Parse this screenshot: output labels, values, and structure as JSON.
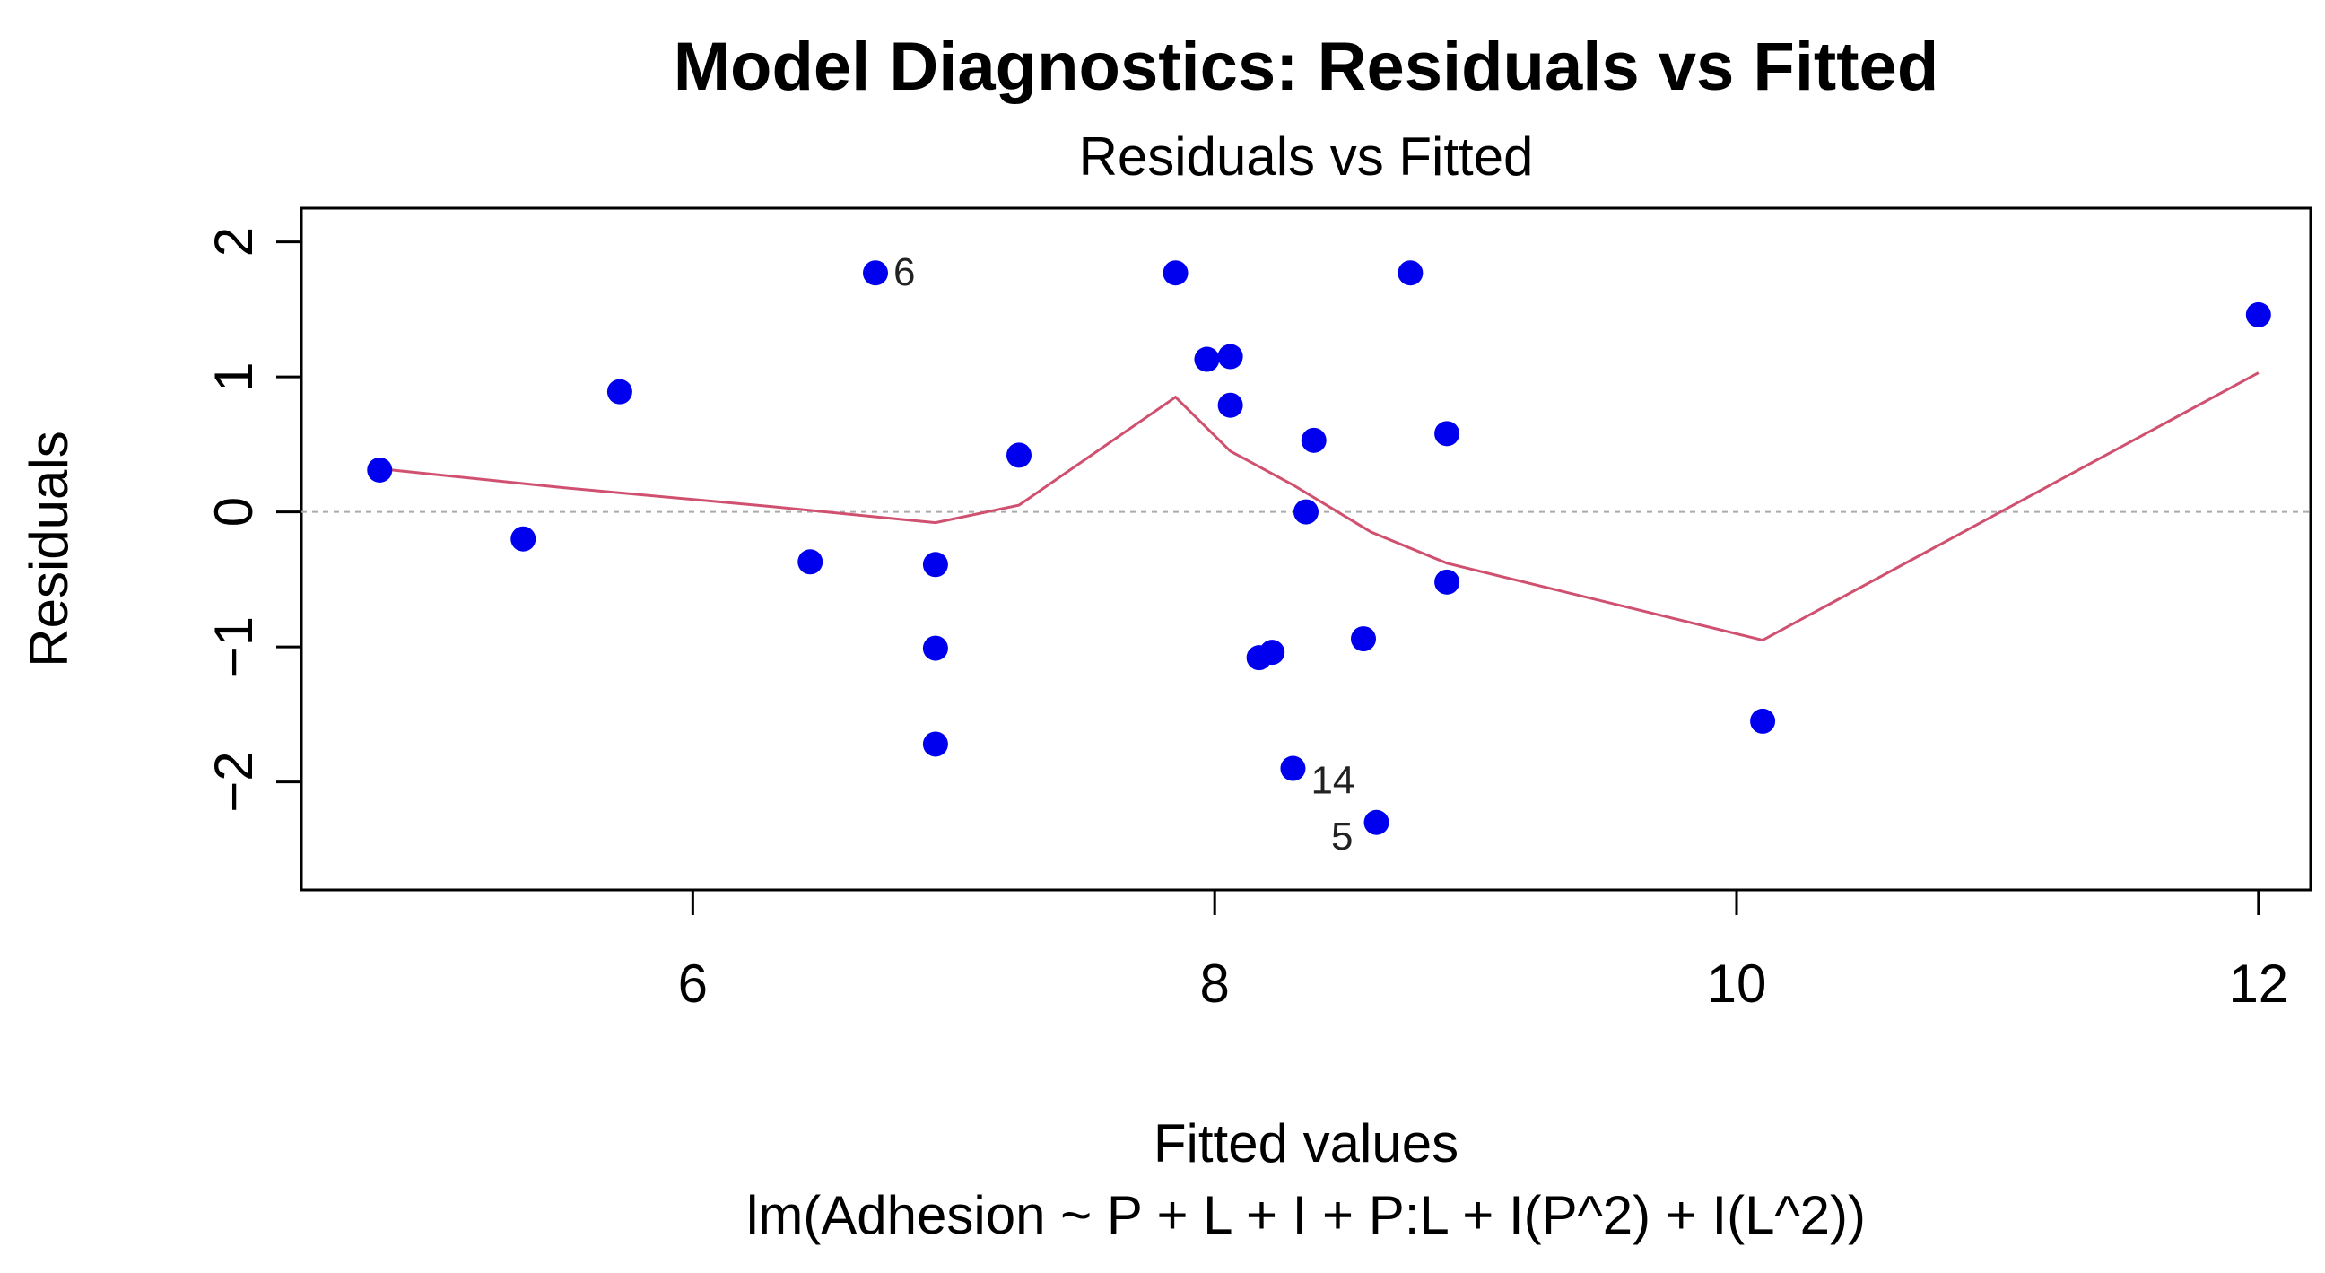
{
  "chart_data": {
    "type": "scatter",
    "title": "Model Diagnostics: Residuals vs Fitted",
    "subtitle": "Residuals vs Fitted",
    "xlabel": "Fitted values",
    "xlabel_sub": "lm(Adhesion ~ P + L + I + P:L + I(P^2) + I(L^2))",
    "ylabel": "Residuals",
    "xlim": [
      4.5,
      12.2
    ],
    "ylim": [
      -2.8,
      2.25
    ],
    "x_ticks": [
      6,
      8,
      10,
      12
    ],
    "y_ticks": [
      -2,
      -1,
      0,
      1,
      2
    ],
    "grid": false,
    "reference_line_y": 0,
    "point_color": "#0000ee",
    "smooth_color": "#d05070",
    "reference_color": "#aaaaaa",
    "points": [
      {
        "x": 4.8,
        "y": 0.31
      },
      {
        "x": 5.35,
        "y": -0.2
      },
      {
        "x": 5.72,
        "y": 0.89
      },
      {
        "x": 6.45,
        "y": -0.37
      },
      {
        "x": 6.7,
        "y": 1.77,
        "label": "6"
      },
      {
        "x": 6.93,
        "y": -0.39
      },
      {
        "x": 6.93,
        "y": -1.01
      },
      {
        "x": 6.93,
        "y": -1.72
      },
      {
        "x": 7.25,
        "y": 0.42
      },
      {
        "x": 7.85,
        "y": 1.77
      },
      {
        "x": 7.97,
        "y": 1.13
      },
      {
        "x": 8.06,
        "y": 1.15
      },
      {
        "x": 8.06,
        "y": 0.79
      },
      {
        "x": 8.17,
        "y": -1.08
      },
      {
        "x": 8.22,
        "y": -1.04
      },
      {
        "x": 8.3,
        "y": -1.9,
        "label": "14"
      },
      {
        "x": 8.35,
        "y": 0.0
      },
      {
        "x": 8.38,
        "y": 0.53
      },
      {
        "x": 8.57,
        "y": -0.94
      },
      {
        "x": 8.62,
        "y": -2.3,
        "label": "5"
      },
      {
        "x": 8.75,
        "y": 1.77
      },
      {
        "x": 8.89,
        "y": 0.58
      },
      {
        "x": 8.89,
        "y": -0.52
      },
      {
        "x": 10.1,
        "y": -1.55
      },
      {
        "x": 12.0,
        "y": 1.46
      }
    ],
    "smooth_line": [
      {
        "x": 4.8,
        "y": 0.32
      },
      {
        "x": 5.5,
        "y": 0.18
      },
      {
        "x": 6.3,
        "y": 0.04
      },
      {
        "x": 6.93,
        "y": -0.08
      },
      {
        "x": 7.25,
        "y": 0.05
      },
      {
        "x": 7.85,
        "y": 0.85
      },
      {
        "x": 8.06,
        "y": 0.45
      },
      {
        "x": 8.3,
        "y": 0.2
      },
      {
        "x": 8.6,
        "y": -0.15
      },
      {
        "x": 8.89,
        "y": -0.38
      },
      {
        "x": 10.1,
        "y": -0.95
      },
      {
        "x": 12.0,
        "y": 1.03
      }
    ]
  }
}
